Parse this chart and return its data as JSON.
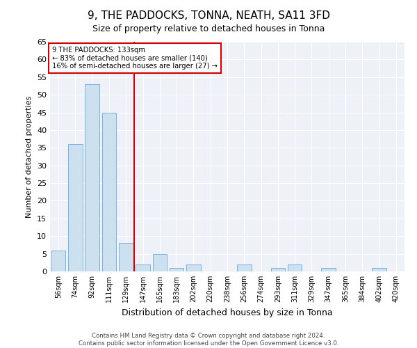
{
  "title": "9, THE PADDOCKS, TONNA, NEATH, SA11 3FD",
  "subtitle": "Size of property relative to detached houses in Tonna",
  "xlabel": "Distribution of detached houses by size in Tonna",
  "ylabel": "Number of detached properties",
  "categories": [
    "56sqm",
    "74sqm",
    "92sqm",
    "111sqm",
    "129sqm",
    "147sqm",
    "165sqm",
    "183sqm",
    "202sqm",
    "220sqm",
    "238sqm",
    "256sqm",
    "274sqm",
    "293sqm",
    "311sqm",
    "329sqm",
    "347sqm",
    "365sqm",
    "384sqm",
    "402sqm",
    "420sqm"
  ],
  "values": [
    6,
    36,
    53,
    45,
    8,
    2,
    5,
    1,
    2,
    0,
    0,
    2,
    0,
    1,
    2,
    0,
    1,
    0,
    0,
    1,
    0
  ],
  "bar_color": "#cce0f0",
  "bar_edge_color": "#6aaad4",
  "annotation_line1": "9 THE PADDOCKS: 133sqm",
  "annotation_line2": "← 83% of detached houses are smaller (140)",
  "annotation_line3": "16% of semi-detached houses are larger (27) →",
  "annotation_box_color": "#cc0000",
  "red_line_x": 4.5,
  "ylim": [
    0,
    65
  ],
  "yticks": [
    0,
    5,
    10,
    15,
    20,
    25,
    30,
    35,
    40,
    45,
    50,
    55,
    60,
    65
  ],
  "footer1": "Contains HM Land Registry data © Crown copyright and database right 2024.",
  "footer2": "Contains public sector information licensed under the Open Government Licence v3.0.",
  "bg_color": "#eef2f8",
  "title_fontsize": 11,
  "subtitle_fontsize": 9,
  "ylabel_fontsize": 8,
  "xlabel_fontsize": 9,
  "bar_width": 0.85
}
